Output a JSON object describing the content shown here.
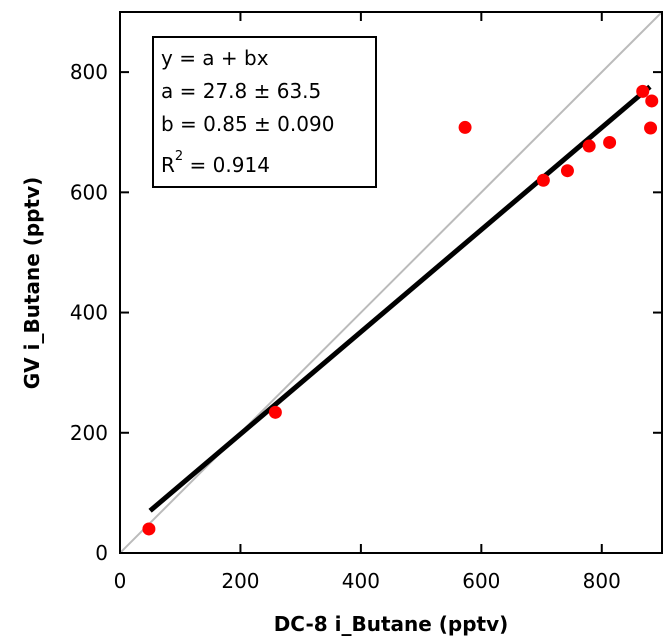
{
  "chart_data": {
    "type": "scatter",
    "xlabel": "DC-8 i_Butane (pptv)",
    "ylabel": "GV i_Butane (pptv)",
    "xlim": [
      0,
      900
    ],
    "ylim": [
      0,
      900
    ],
    "xticks": [
      0,
      200,
      400,
      600,
      800
    ],
    "yticks": [
      0,
      200,
      400,
      600,
      800
    ],
    "grid": false,
    "series": [
      {
        "points": [
          {
            "x": 48,
            "y": 40
          },
          {
            "x": 258,
            "y": 234
          },
          {
            "x": 573,
            "y": 708
          },
          {
            "x": 703,
            "y": 620
          },
          {
            "x": 743,
            "y": 636
          },
          {
            "x": 779,
            "y": 677
          },
          {
            "x": 813,
            "y": 683
          },
          {
            "x": 868,
            "y": 768
          },
          {
            "x": 883,
            "y": 752
          },
          {
            "x": 881,
            "y": 707
          }
        ],
        "color": "#ff0000"
      }
    ],
    "fit": {
      "a": 27.8,
      "b": 0.85,
      "x_range": [
        50,
        880
      ],
      "color": "#000000"
    },
    "reference_line": {
      "slope": 1,
      "intercept": 0,
      "color": "#bbbbbb"
    },
    "annotation": {
      "line1": "y = a + bx",
      "line2": "a = 27.8 ± 63.5",
      "line3": "b = 0.85 ± 0.090",
      "line4_prefix": "R",
      "line4_sup": "2",
      "line4_suffix": " = 0.914",
      "placement": "top-left"
    }
  }
}
